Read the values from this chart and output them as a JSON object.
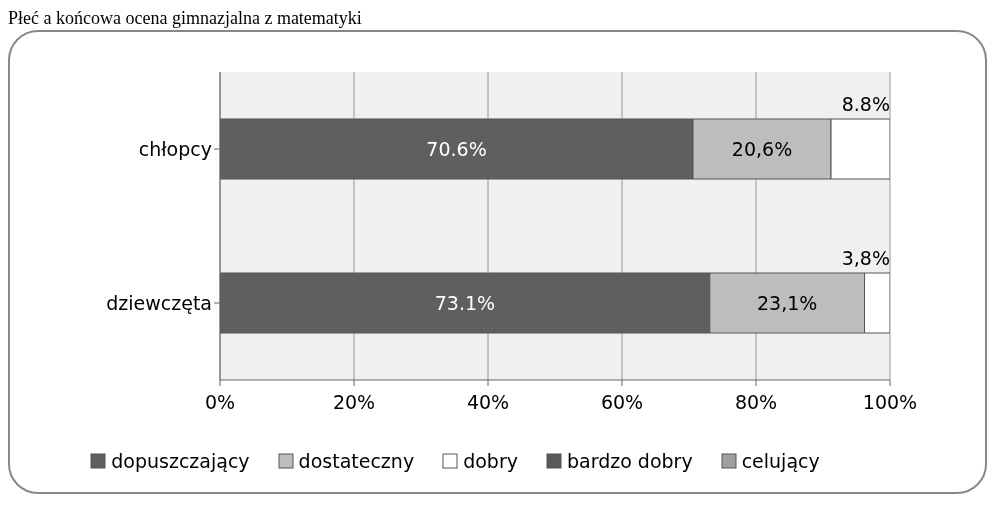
{
  "chart_data": {
    "type": "bar",
    "orientation": "horizontal",
    "stacked": true,
    "title": "Płeć a końcowa ocena gimnazjalna z matematyki",
    "categories": [
      "chłopcy",
      "dziewczęta"
    ],
    "series": [
      {
        "name": "dopuszczający",
        "color": "#5f5f5f",
        "values": [
          70.6,
          73.1
        ],
        "value_labels": [
          "70.6%",
          "73.1%"
        ]
      },
      {
        "name": "dostateczny",
        "color": "#bdbdbd",
        "values": [
          20.6,
          23.1
        ],
        "value_labels": [
          "20,6%",
          "23,1%"
        ]
      },
      {
        "name": "dobry",
        "color": "#ffffff",
        "values": [
          8.8,
          3.8
        ],
        "value_labels": [
          "8.8%",
          "3,8%"
        ]
      },
      {
        "name": "bardzo dobry",
        "color": "#595959",
        "values": [
          0,
          0
        ]
      },
      {
        "name": "celujący",
        "color": "#a0a0a0",
        "values": [
          0,
          0
        ]
      }
    ],
    "xlim": [
      0,
      100
    ],
    "xticks": [
      {
        "value": 0,
        "label": "0%"
      },
      {
        "value": 20,
        "label": "20%"
      },
      {
        "value": 40,
        "label": "40%"
      },
      {
        "value": 60,
        "label": "60%"
      },
      {
        "value": 80,
        "label": "80%"
      },
      {
        "value": 100,
        "label": "100%"
      }
    ],
    "grid": "x",
    "legend": "bottom"
  }
}
